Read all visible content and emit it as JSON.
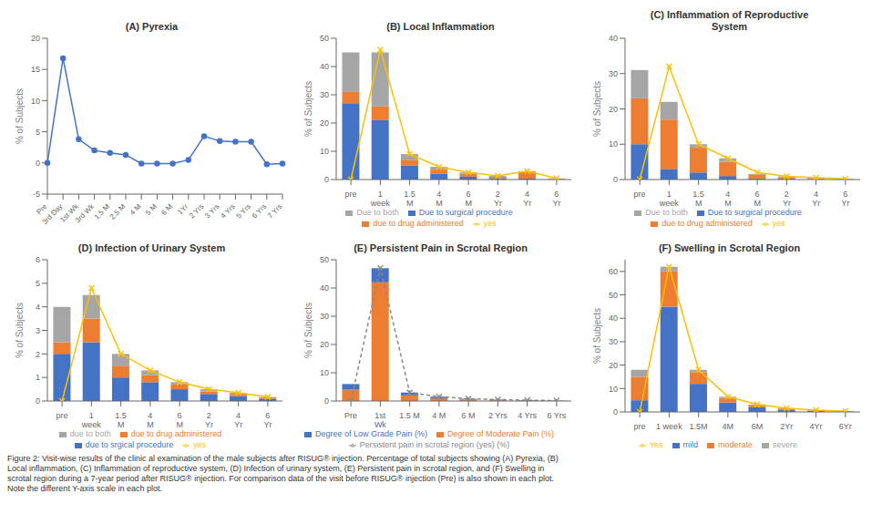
{
  "chart_data": [
    {
      "type": "line",
      "title": "(A) Pyrexia",
      "ylabel": "% of Subjects",
      "categories": [
        "Pre",
        "3rd Day",
        "1st Wk",
        "3rd Wk",
        "1.5 M",
        "2.5 M",
        "4 M",
        "5 M",
        "6 M",
        "1Yr",
        "2 Yrs",
        "3 Yrs",
        "4 Yrs",
        "5 Yrs",
        "6 Yrs",
        "7 Yrs"
      ],
      "values": [
        0,
        16.8,
        3.8,
        2.0,
        1.6,
        1.3,
        -0.1,
        -0.1,
        -0.1,
        0.5,
        4.3,
        3.5,
        3.4,
        3.4,
        -0.2,
        -0.1
      ],
      "color": "#4472C4",
      "marker": "o",
      "ylim": [
        -5,
        20
      ],
      "yticks": [
        -5,
        0,
        5,
        10,
        15,
        20
      ],
      "grid": false
    },
    {
      "type": "bar",
      "title": "(B) Local Inflammation",
      "ylabel": "% of Subjects",
      "categories": [
        "pre",
        "1\nweek",
        "1.5\nM",
        "4\nM",
        "6\nM",
        "2\nYr",
        "4\nYr",
        "6\nYr"
      ],
      "stacked": true,
      "legend": "bottom",
      "grid": false,
      "ylim": [
        0,
        50
      ],
      "yticks": [
        0,
        10,
        20,
        30,
        40,
        50
      ],
      "series": [
        {
          "name": "Due to surgical procedure",
          "type": "bar",
          "color": "#4472C4",
          "values": [
            27,
            21,
            5,
            2,
            1,
            0.5,
            0.3,
            0.1
          ]
        },
        {
          "name": "due to drug administered",
          "type": "bar",
          "color": "#ED7D31",
          "values": [
            4,
            5,
            2,
            1.5,
            1,
            0.5,
            2.5,
            0.2
          ]
        },
        {
          "name": "Due to both",
          "type": "bar",
          "color": "#A5A5A5",
          "values": [
            14,
            19,
            2,
            1,
            0.5,
            0.3,
            0.2,
            0.1
          ]
        },
        {
          "name": "yes",
          "type": "line",
          "color": "#FFC000",
          "marker": "x",
          "values": [
            0,
            46,
            9,
            4.5,
            2.5,
            1.3,
            3.0,
            0.4
          ]
        }
      ]
    },
    {
      "type": "bar",
      "title": "(C) Inflammation of Reproductive\nSystem",
      "ylabel": "% of Subjects",
      "categories": [
        "pre",
        "1\nweek",
        "1.5\nM",
        "4\nM",
        "6\nM",
        "2\nYr",
        "4\nYr",
        "6\nYr"
      ],
      "stacked": true,
      "legend": "bottom",
      "grid": false,
      "ylim": [
        0,
        40
      ],
      "yticks": [
        0,
        10,
        20,
        30,
        40
      ],
      "series": [
        {
          "name": "Due to surgical procedure",
          "type": "bar",
          "color": "#4472C4",
          "values": [
            10,
            3,
            2,
            1,
            0.3,
            0.2,
            0.1,
            0.05
          ]
        },
        {
          "name": "due to drug administered",
          "type": "bar",
          "color": "#ED7D31",
          "values": [
            13,
            14,
            7,
            4,
            1,
            0.5,
            0.3,
            0.1
          ]
        },
        {
          "name": "Due to both",
          "type": "bar",
          "color": "#A5A5A5",
          "values": [
            8,
            5,
            1,
            1,
            0.3,
            0.2,
            0.1,
            0.05
          ]
        },
        {
          "name": "yes",
          "type": "line",
          "color": "#FFC000",
          "marker": "x",
          "values": [
            0,
            32,
            10,
            6,
            2,
            0.9,
            0.5,
            0.2
          ]
        }
      ]
    },
    {
      "type": "bar",
      "title": "(D) Infection of Urinary System",
      "ylabel": "% of Subjects",
      "categories": [
        "pre",
        "1\nweek",
        "1.5\nM",
        "4\nM",
        "6\nM",
        "2\nYr",
        "4\nYr",
        "6\nYr"
      ],
      "stacked": true,
      "legend": "bottom",
      "grid": false,
      "ylim": [
        0,
        6
      ],
      "yticks": [
        0,
        1,
        2,
        3,
        4,
        5,
        6
      ],
      "series": [
        {
          "name": "due to srgical procedure",
          "type": "bar",
          "color": "#4472C4",
          "values": [
            2,
            2.5,
            1,
            0.8,
            0.5,
            0.3,
            0.2,
            0.1
          ]
        },
        {
          "name": "due to drug administered",
          "type": "bar",
          "color": "#ED7D31",
          "values": [
            0.5,
            1,
            0.5,
            0.3,
            0.2,
            0.1,
            0.1,
            0.05
          ]
        },
        {
          "name": "due to both",
          "type": "bar",
          "color": "#A5A5A5",
          "values": [
            1.5,
            1,
            0.5,
            0.2,
            0.1,
            0.1,
            0.05,
            0.02
          ]
        },
        {
          "name": "yes",
          "type": "line",
          "color": "#FFC000",
          "marker": "x",
          "values": [
            0,
            4.8,
            2,
            1.3,
            0.8,
            0.5,
            0.35,
            0.17
          ]
        }
      ]
    },
    {
      "type": "bar",
      "title": "(E) Persistent Pain in Scrotal Region",
      "ylabel": "% of Subjects",
      "categories": [
        "Pre",
        "1st\nWk",
        "1.5 M",
        "4 M",
        "6 M",
        "2 Yrs",
        "4 Yrs",
        "6 Yrs"
      ],
      "stacked": true,
      "legend": "bottom",
      "grid": false,
      "ylim": [
        0,
        50
      ],
      "yticks": [
        0,
        10,
        20,
        30,
        40,
        50
      ],
      "series": [
        {
          "name": "Degree of Moderate Pain (%)",
          "type": "bar",
          "color": "#ED7D31",
          "values": [
            4,
            42,
            2,
            1,
            0.5,
            0.3,
            0.2,
            0.1
          ]
        },
        {
          "name": "Degree of Low Grade Pain (%)",
          "type": "bar",
          "color": "#4472C4",
          "values": [
            2,
            5,
            1,
            0.5,
            0.3,
            0.2,
            0.1,
            0.05
          ]
        },
        {
          "name": "Persistent pain in scrotal region (yes) (%)",
          "type": "line",
          "color": "#888888",
          "marker": "x",
          "line_style": "dashed",
          "values": [
            0,
            47,
            3,
            1.5,
            0.8,
            0.5,
            0.3,
            0.15
          ]
        }
      ]
    },
    {
      "type": "bar",
      "title": "(F) Swelling in Scrotal Region",
      "ylabel": "% of Subjects",
      "categories": [
        "pre",
        "1 week",
        "1.5M",
        "4M",
        "6M",
        "2Yr",
        "4Yr",
        "6Yr"
      ],
      "stacked": true,
      "legend": "bottom",
      "grid": false,
      "ylim": [
        0,
        65
      ],
      "yticks": [
        0,
        10,
        20,
        30,
        40,
        50,
        60
      ],
      "series": [
        {
          "name": "mild",
          "type": "bar",
          "color": "#4472C4",
          "values": [
            5,
            45,
            12,
            4,
            2,
            1,
            0.5,
            0.2
          ]
        },
        {
          "name": "moderate",
          "type": "bar",
          "color": "#ED7D31",
          "values": [
            10,
            15,
            5,
            2,
            1,
            0.5,
            0.2,
            0.1
          ]
        },
        {
          "name": "severe",
          "type": "bar",
          "color": "#A5A5A5",
          "values": [
            3,
            2,
            1,
            0.5,
            0.2,
            0.1,
            0.05,
            0.02
          ]
        },
        {
          "name": "Yes",
          "type": "line",
          "color": "#FFC000",
          "marker": "x",
          "values": [
            0,
            62,
            18,
            6.5,
            3.2,
            1.6,
            0.75,
            0.32
          ]
        }
      ]
    }
  ],
  "annotations": [
    "Figure 2: Visit-wise results of the clinic al examination of the male subjects after RISUG® injection. Percentage of total subjects showing (A) Pyrexia, (B)\nLocal inflammation, (C) Inflammation of reproductive system, (D) Infection of urinary system, (E) Persistent pain in scrotal region, and (F) Swelling in\nscrotal region during a 7-year period after RISUG® injection. For comparison data of the visit before RISUG® injection (Pre) is also shown in each plot.\nNote the different Y-axis scale in each plot."
  ]
}
